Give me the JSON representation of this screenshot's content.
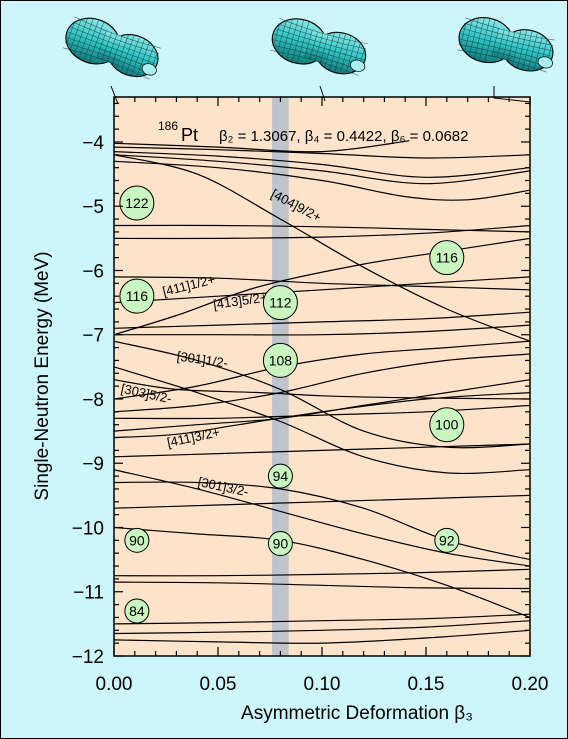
{
  "colors": {
    "background": "#cdf6fb",
    "plot_area": "#fde3c9",
    "highlight_band": "#bfc4cc",
    "circle_fill": "#c9f5c0",
    "shape_fill": "#2fc3c3"
  },
  "chart_data": {
    "type": "line",
    "xlabel": "Asymmetric Deformation β₃",
    "ylabel": "Single-Neutron Energy (MeV)",
    "xlim": [
      0.0,
      0.2
    ],
    "ylim": [
      -12,
      -3.3
    ],
    "xticks": [
      "0.00",
      "0.05",
      "0.10",
      "0.15",
      "0.20"
    ],
    "yticks": [
      "−4",
      "−5",
      "−6",
      "−7",
      "−8",
      "−9",
      "−10",
      "−11",
      "−12"
    ],
    "highlight_band": [
      0.076,
      0.084
    ],
    "annotation": {
      "nucleus_mass": "186",
      "nucleus_symbol": "Pt",
      "params": "β₂ = 1.3067, β₄ = 0.4422, β₆ = 0.0682"
    },
    "level_labels": [
      {
        "text": "[404]9/2+",
        "x": 0.075,
        "y": -4.85
      },
      {
        "text": "[411]1/2+",
        "x": 0.024,
        "y": -6.4
      },
      {
        "text": "[413]5/2+",
        "x": 0.048,
        "y": -6.6
      },
      {
        "text": "[301]1/2-",
        "x": 0.03,
        "y": -7.4
      },
      {
        "text": "[303]5/2-",
        "x": 0.003,
        "y": -7.9
      },
      {
        "text": "[411]3/2+",
        "x": 0.026,
        "y": -8.75
      },
      {
        "text": "[301]3/2-",
        "x": 0.04,
        "y": -9.35
      }
    ],
    "shell_gaps": [
      {
        "label": "122",
        "x": 0.011,
        "y": -4.95
      },
      {
        "label": "116",
        "x": 0.011,
        "y": -6.4
      },
      {
        "label": "90",
        "x": 0.011,
        "y": -10.2
      },
      {
        "label": "84",
        "x": 0.011,
        "y": -11.3
      },
      {
        "label": "112",
        "x": 0.08,
        "y": -6.5
      },
      {
        "label": "108",
        "x": 0.08,
        "y": -7.4
      },
      {
        "label": "94",
        "x": 0.08,
        "y": -9.2
      },
      {
        "label": "90",
        "x": 0.08,
        "y": -10.25
      },
      {
        "label": "116",
        "x": 0.16,
        "y": -5.8
      },
      {
        "label": "100",
        "x": 0.16,
        "y": -8.4
      },
      {
        "label": "92",
        "x": 0.16,
        "y": -10.2
      }
    ],
    "series": [
      {
        "x": [
          0,
          0.05,
          0.1,
          0.142
        ],
        "y": [
          -4.02,
          -4.08,
          -4.15,
          -3.98
        ]
      },
      {
        "x": [
          0,
          0.05,
          0.1,
          0.15,
          0.2
        ],
        "y": [
          -4.08,
          -4.12,
          -4.18,
          -4.25,
          -4.2
        ]
      },
      {
        "x": [
          0,
          0.05,
          0.1,
          0.15,
          0.2
        ],
        "y": [
          -4.15,
          -4.22,
          -4.35,
          -4.55,
          -4.4
        ]
      },
      {
        "x": [
          0,
          0.05,
          0.1,
          0.15,
          0.2
        ],
        "y": [
          -4.2,
          -4.3,
          -4.45,
          -4.65,
          -4.45
        ]
      },
      {
        "x": [
          0,
          0.05,
          0.1,
          0.14,
          0.17,
          0.2
        ],
        "y": [
          -4.3,
          -4.4,
          -4.6,
          -4.85,
          -4.9,
          -4.75
        ]
      },
      {
        "x": [
          0,
          0.04,
          0.08,
          0.12,
          0.16,
          0.2
        ],
        "y": [
          -4.2,
          -4.5,
          -5.2,
          -5.95,
          -6.6,
          -7.1
        ]
      },
      {
        "x": [
          0,
          0.05,
          0.1,
          0.15,
          0.2
        ],
        "y": [
          -5.3,
          -5.3,
          -5.32,
          -5.36,
          -5.4
        ]
      },
      {
        "x": [
          0,
          0.05,
          0.1,
          0.15,
          0.2
        ],
        "y": [
          -5.5,
          -5.5,
          -5.48,
          -5.42,
          -5.3
        ]
      },
      {
        "x": [
          0,
          0.03,
          0.07,
          0.12,
          0.16,
          0.2
        ],
        "y": [
          -7.0,
          -6.7,
          -6.25,
          -5.9,
          -5.7,
          -5.5
        ]
      },
      {
        "x": [
          0,
          0.05,
          0.1,
          0.15,
          0.2
        ],
        "y": [
          -6.5,
          -6.4,
          -6.3,
          -6.2,
          -6.1
        ]
      },
      {
        "x": [
          0,
          0.05,
          0.1,
          0.15,
          0.2
        ],
        "y": [
          -6.1,
          -6.12,
          -6.2,
          -6.25,
          -6.3
        ]
      },
      {
        "x": [
          0,
          0.05,
          0.1,
          0.15,
          0.2
        ],
        "y": [
          -6.9,
          -6.85,
          -6.8,
          -6.75,
          -6.65
        ]
      },
      {
        "x": [
          0,
          0.05,
          0.1,
          0.15,
          0.2
        ],
        "y": [
          -7.0,
          -7.0,
          -7.0,
          -6.95,
          -6.85
        ]
      },
      {
        "x": [
          0,
          0.04,
          0.08,
          0.12,
          0.16,
          0.2
        ],
        "y": [
          -7.1,
          -7.4,
          -7.85,
          -8.5,
          -8.75,
          -8.7
        ]
      },
      {
        "x": [
          0,
          0.04,
          0.08,
          0.12,
          0.16,
          0.2
        ],
        "y": [
          -7.5,
          -7.9,
          -8.35,
          -8.9,
          -9.15,
          -9.1
        ]
      },
      {
        "x": [
          0,
          0.03,
          0.07,
          0.1,
          0.14,
          0.2
        ],
        "y": [
          -7.7,
          -7.85,
          -7.9,
          -7.95,
          -7.98,
          -8.0
        ]
      },
      {
        "x": [
          0,
          0.04,
          0.08,
          0.12,
          0.16,
          0.2
        ],
        "y": [
          -8.0,
          -7.8,
          -7.5,
          -7.3,
          -7.2,
          -7.1
        ]
      },
      {
        "x": [
          0,
          0.04,
          0.08,
          0.12,
          0.16,
          0.2
        ],
        "y": [
          -8.2,
          -8.1,
          -7.9,
          -7.6,
          -7.4,
          -7.3
        ]
      },
      {
        "x": [
          0,
          0.05,
          0.1,
          0.15,
          0.2
        ],
        "y": [
          -8.3,
          -8.3,
          -8.25,
          -8.2,
          -8.1
        ]
      },
      {
        "x": [
          0,
          0.04,
          0.08,
          0.12,
          0.16,
          0.2
        ],
        "y": [
          -8.5,
          -8.4,
          -8.3,
          -8.1,
          -7.9,
          -7.7
        ]
      },
      {
        "x": [
          0,
          0.03,
          0.06,
          0.1,
          0.15,
          0.2
        ],
        "y": [
          -8.6,
          -8.55,
          -8.4,
          -8.2,
          -8.0,
          -7.9
        ]
      },
      {
        "x": [
          0,
          0.05,
          0.1,
          0.15,
          0.2
        ],
        "y": [
          -8.9,
          -8.85,
          -8.8,
          -8.75,
          -8.7
        ]
      },
      {
        "x": [
          0,
          0.04,
          0.08,
          0.12,
          0.16,
          0.2
        ],
        "y": [
          -9.1,
          -9.4,
          -9.75,
          -10.1,
          -10.4,
          -10.6
        ]
      },
      {
        "x": [
          0,
          0.04,
          0.08,
          0.12,
          0.16,
          0.2
        ],
        "y": [
          -9.3,
          -9.3,
          -9.4,
          -9.7,
          -10.2,
          -10.5
        ]
      },
      {
        "x": [
          0,
          0.05,
          0.1,
          0.15,
          0.2
        ],
        "y": [
          -9.7,
          -9.65,
          -9.6,
          -9.55,
          -9.5
        ]
      },
      {
        "x": [
          0,
          0.04,
          0.08,
          0.12,
          0.16,
          0.2
        ],
        "y": [
          -10.0,
          -10.1,
          -10.2,
          -10.5,
          -10.9,
          -11.4
        ]
      },
      {
        "x": [
          0,
          0.05,
          0.1,
          0.15,
          0.2
        ],
        "y": [
          -10.75,
          -10.75,
          -10.73,
          -10.7,
          -10.65
        ]
      },
      {
        "x": [
          0,
          0.05,
          0.1,
          0.15,
          0.2
        ],
        "y": [
          -10.85,
          -10.86,
          -10.9,
          -10.94,
          -10.95
        ]
      },
      {
        "x": [
          0,
          0.05,
          0.1,
          0.15,
          0.2
        ],
        "y": [
          -11.5,
          -11.48,
          -11.45,
          -11.42,
          -11.35
        ]
      },
      {
        "x": [
          0,
          0.05,
          0.1,
          0.15,
          0.2
        ],
        "y": [
          -11.65,
          -11.63,
          -11.6,
          -11.55,
          -11.45
        ]
      },
      {
        "x": [
          0,
          0.05,
          0.1,
          0.15,
          0.2
        ],
        "y": [
          -11.75,
          -11.78,
          -11.8,
          -11.72,
          -11.6
        ]
      }
    ]
  }
}
